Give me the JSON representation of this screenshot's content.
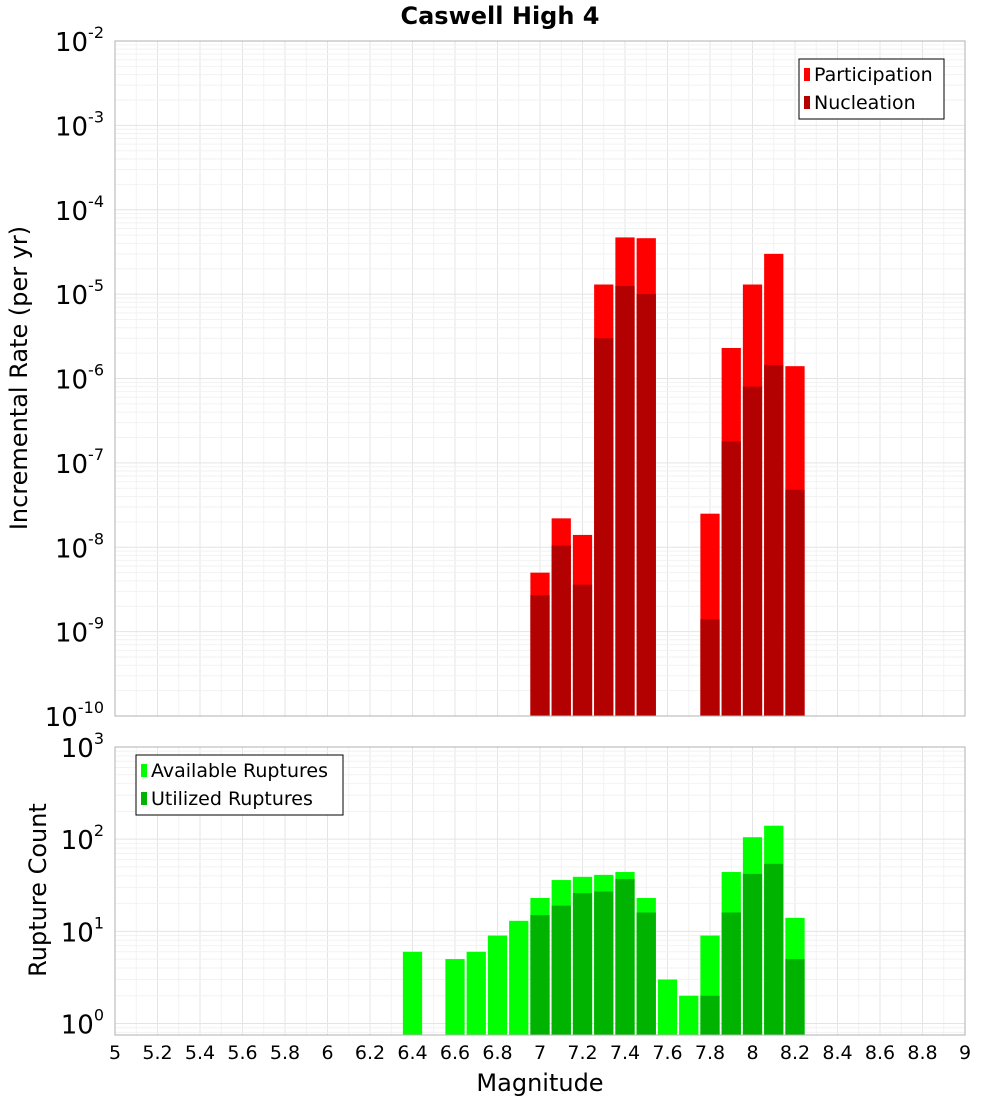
{
  "chart_data": [
    {
      "type": "bar",
      "title": "Caswell High 4",
      "xlabel": "",
      "ylabel": "Incremental Rate (per yr)",
      "xlim": [
        5,
        9
      ],
      "ylim": [
        1e-10,
        0.01
      ],
      "yscale": "log",
      "ytick_exponents": [
        -10,
        -9,
        -8,
        -7,
        -6,
        -5,
        -4,
        -3,
        -2
      ],
      "bin_width": 0.1,
      "grid": true,
      "legend_position": "top-right",
      "colors": {
        "Participation": "#ff0000",
        "Nucleation": "#b30000"
      },
      "x": [
        7.0,
        7.1,
        7.2,
        7.3,
        7.4,
        7.5,
        7.8,
        7.9,
        8.0,
        8.1,
        8.2
      ],
      "series": [
        {
          "name": "Participation",
          "values": [
            5e-09,
            2.2e-08,
            1.4e-08,
            1.3e-05,
            4.7e-05,
            4.6e-05,
            2.5e-08,
            2.3e-06,
            1.3e-05,
            3e-05,
            1.4e-06
          ]
        },
        {
          "name": "Nucleation",
          "values": [
            2.7e-09,
            1.05e-08,
            3.6e-09,
            3e-06,
            1.25e-05,
            1e-05,
            1.4e-09,
            1.8e-07,
            8e-07,
            1.45e-06,
            4.8e-08
          ]
        }
      ]
    },
    {
      "type": "bar",
      "title": "",
      "xlabel": "Magnitude",
      "ylabel": "Rupture Count",
      "xlim": [
        5,
        9
      ],
      "ylim": [
        0.75,
        1000
      ],
      "yscale": "log",
      "ytick_exponents": [
        0,
        1,
        2,
        3
      ],
      "bin_width": 0.1,
      "grid": true,
      "legend_position": "top-left",
      "colors": {
        "Available Ruptures": "#00ff00",
        "Utilized Ruptures": "#00b300"
      },
      "xticks": [
        "5",
        "5.2",
        "5.4",
        "5.6",
        "5.8",
        "6",
        "6.2",
        "6.4",
        "6.6",
        "6.8",
        "7",
        "7.2",
        "7.4",
        "7.6",
        "7.8",
        "8",
        "8.2",
        "8.4",
        "8.6",
        "8.8",
        "9"
      ],
      "x": [
        6.4,
        6.6,
        6.7,
        6.8,
        6.9,
        7.0,
        7.1,
        7.2,
        7.3,
        7.4,
        7.5,
        7.6,
        7.7,
        7.8,
        7.9,
        8.0,
        8.1,
        8.2
      ],
      "series": [
        {
          "name": "Available Ruptures",
          "values": [
            6,
            5,
            6,
            9,
            13,
            23,
            36,
            39,
            41,
            44,
            23,
            3,
            2,
            9,
            44,
            105,
            140,
            14
          ]
        },
        {
          "name": "Utilized Ruptures",
          "values": [
            0,
            0,
            0,
            0,
            0,
            15,
            19,
            26,
            27,
            37,
            16,
            0,
            0,
            2,
            16,
            42,
            54,
            5
          ]
        }
      ]
    }
  ]
}
